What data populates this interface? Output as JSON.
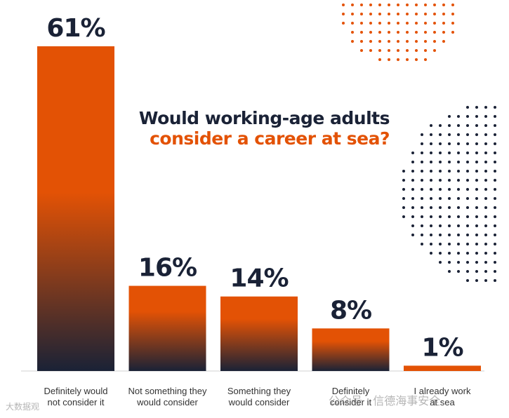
{
  "chart_data": {
    "type": "bar",
    "title_line1": "Would working-age adults",
    "title_line2": "consider a career at sea?",
    "categories": [
      [
        "Definitely would",
        "not consider it"
      ],
      [
        "Not something they",
        "would consider"
      ],
      [
        "Something they",
        "would consider"
      ],
      [
        "Definitely",
        "consider it"
      ],
      [
        "I already work",
        "at sea"
      ]
    ],
    "values": [
      61,
      16,
      14,
      8,
      1
    ],
    "value_labels": [
      "61%",
      "16%",
      "14%",
      "8%",
      "1%"
    ],
    "ylim": [
      0,
      61
    ],
    "bar_gradient_top": "#e35205",
    "bar_gradient_bottom": "#1a2236",
    "accent_color": "#e35205",
    "navy_color": "#1a2236"
  },
  "watermarks": {
    "left": "大数据观",
    "right": "公众号 · 信德海事安全"
  }
}
